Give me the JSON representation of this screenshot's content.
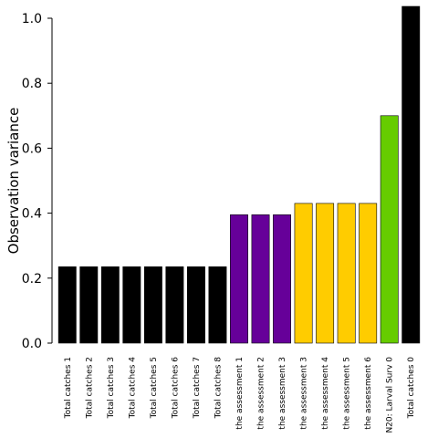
{
  "chart_data": {
    "type": "bar",
    "title": "",
    "xlabel": "",
    "ylabel": "Observation variance",
    "ylim": [
      0,
      1.0
    ],
    "yticks": [
      "0.0",
      "0.2",
      "0.4",
      "0.6",
      "0.8",
      "1.0"
    ],
    "grid": false,
    "categories": [
      "Total catches 1",
      "Total catches 2",
      "Total catches 3",
      "Total catches 4",
      "Total catches 5",
      "Total catches 6",
      "Total catches 7",
      "Total catches 8",
      "the assessment 1",
      "the assessment 2",
      "the assessment 3",
      "the assessment 3",
      "the assessment 4",
      "the assessment 5",
      "the assessment 6",
      "N20: Larval Surv 0",
      "Total catches 0"
    ],
    "values": [
      0.235,
      0.235,
      0.235,
      0.235,
      0.235,
      0.235,
      0.235,
      0.235,
      0.395,
      0.395,
      0.395,
      0.43,
      0.43,
      0.43,
      0.43,
      0.7,
      1.04
    ],
    "colors": [
      "#000000",
      "#000000",
      "#000000",
      "#000000",
      "#000000",
      "#000000",
      "#000000",
      "#000000",
      "#660099",
      "#660099",
      "#660099",
      "#ffcc00",
      "#ffcc00",
      "#ffcc00",
      "#ffcc00",
      "#66cc00",
      "#000000"
    ]
  }
}
